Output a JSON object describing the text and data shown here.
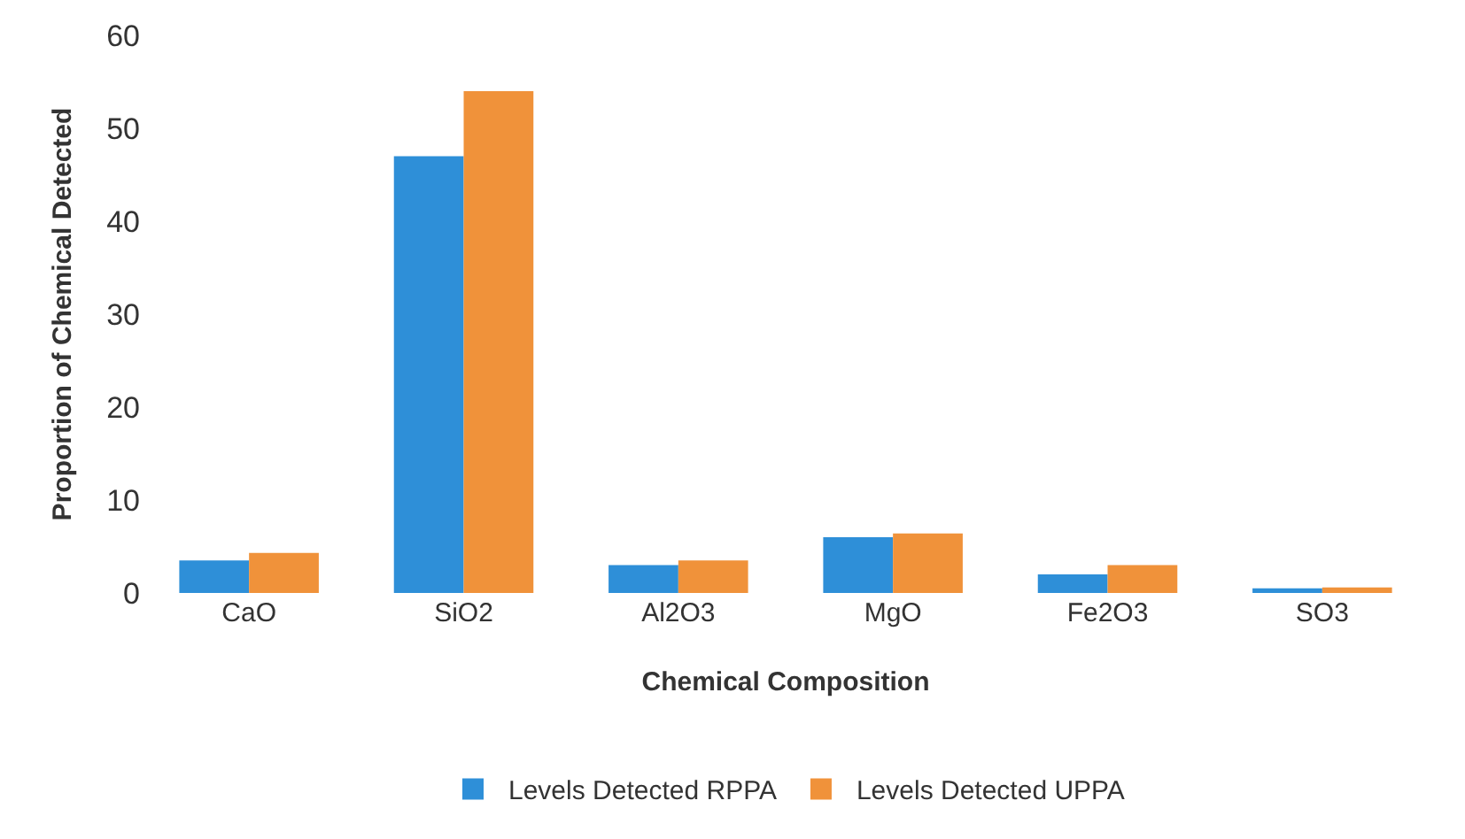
{
  "chart_data": {
    "type": "bar",
    "xlabel": "Chemical Composition",
    "ylabel": "Proportion of Chemical Detected",
    "categories": [
      "CaO",
      "SiO2",
      "Al2O3",
      "MgO",
      "Fe2O3",
      "SO3"
    ],
    "series": [
      {
        "name": "Levels Detected RPPA",
        "color": "#2e8fd8",
        "values": [
          3.5,
          47,
          3,
          6,
          2,
          0.5
        ]
      },
      {
        "name": "Levels Detected UPPA",
        "color": "#f0923a",
        "values": [
          4.3,
          54,
          3.5,
          6.4,
          3,
          0.6
        ]
      }
    ],
    "ylim": [
      0,
      60
    ],
    "yticks": [
      0,
      10,
      20,
      30,
      40,
      50,
      60
    ],
    "grid": false,
    "legend": "bottom"
  }
}
